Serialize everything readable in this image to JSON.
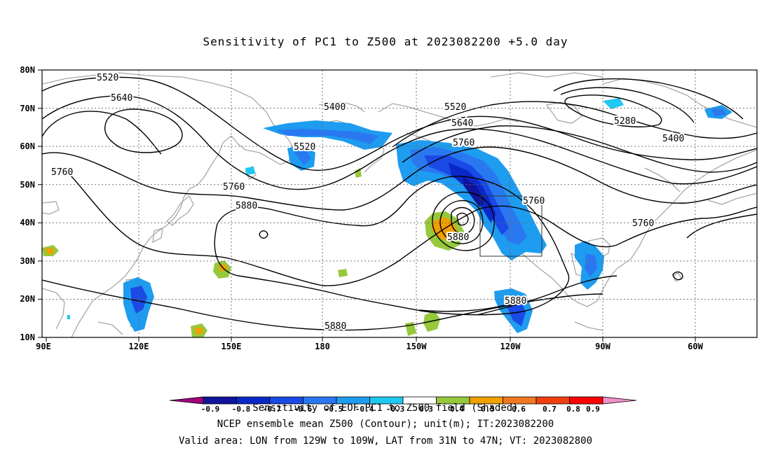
{
  "title": "Sensitivity of PC1 to Z500 at 2023082200 +5.0 day",
  "lat_labels": [
    "80N",
    "70N",
    "60N",
    "50N",
    "40N",
    "30N",
    "20N",
    "10N"
  ],
  "lon_labels": [
    "90E",
    "120E",
    "150E",
    "180",
    "150W",
    "120W",
    "90W",
    "60W"
  ],
  "contour_labels": [
    "5520",
    "5640",
    "5400",
    "5520",
    "5640",
    "5760",
    "5280",
    "5400",
    "5520",
    "5760",
    "5760",
    "5880",
    "5880",
    "5760",
    "5760",
    "5880",
    "5880"
  ],
  "colorbar_labels": [
    "-0.9",
    "-0.8",
    "-0.7",
    "-0.6",
    "-0.5",
    "-0.4",
    "-0.3",
    "0.3",
    "0.4",
    "0.5",
    "0.6",
    "0.7",
    "0.8",
    "0.9"
  ],
  "colorbar_colors": [
    "#a0007a",
    "#10149a",
    "#0a28c8",
    "#1a4ae6",
    "#2a78f0",
    "#1e9cf0",
    "#1ec8f0",
    "#ffffff",
    "#96c83c",
    "#f0a000",
    "#f07820",
    "#f04010",
    "#e01010",
    "#ff0000",
    "#f090c8"
  ],
  "caption_line1": "Sensitivity of EOF PC1 to Z500 field (Shaded)",
  "caption_line2": "NCEP ensemble mean Z500 (Contour); unit(m); IT:2023082200",
  "caption_line3": "Valid area: LON from 129W to 109W, LAT from 31N to 47N; VT: 2023082800"
}
